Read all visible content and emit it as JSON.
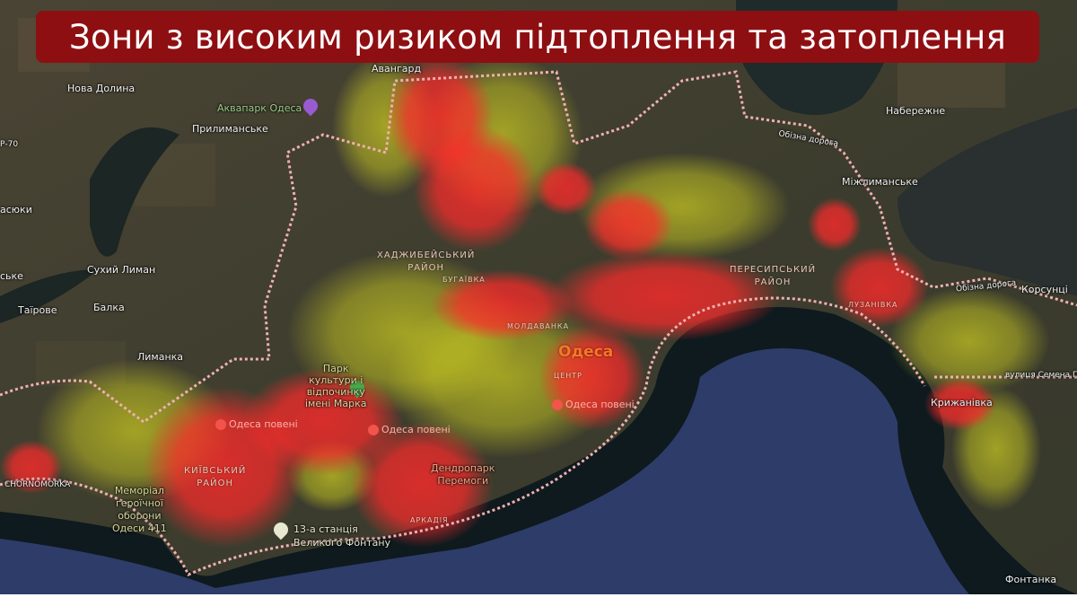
{
  "title": "Зони з високим ризиком підтоплення та затоплення",
  "colors": {
    "banner": "#8e0f12",
    "high_risk": "#ff2a2a",
    "medium_risk": "#d8d820",
    "boundary": "#f0b0b0",
    "sea": "#27365e"
  },
  "places": {
    "avanhard": "Авангард",
    "nova_dolyna": "Нова Долина",
    "aquapark": "Аквапарк Одеса",
    "prylymanske": "Прилиманське",
    "r70": "Р-70",
    "vasiuky": "асюки",
    "ske": "ське",
    "sukhyi_lyman": "Сухий Лиман",
    "tairove": "Таїрове",
    "balka": "Балка",
    "lymanka": "Лиманка",
    "naberezhne": "Набережне",
    "obizna1": "Обізна дорога",
    "obizna2": "Обізна дорога",
    "mizhlymanske": "Міжлиманське",
    "korsuntsi": "Корсунці",
    "semena_paliia": "вулиця Семена Палія",
    "kryzhanivka": "Крижанівка",
    "fontanka": "Фонтанка",
    "chornomorka": "CHORNOMORKA",
    "odesa": "Одеса",
    "tsentr": "ЦЕНТР",
    "moldavanka": "МОЛДАВАНКА",
    "buhaivka": "БУГАЇВКА",
    "luzanivka": "ЛУЗАНІВКА",
    "arkadiia": "АРКАДІЯ"
  },
  "districts": {
    "khadzhybeiskyi": [
      "ХАДЖИБЕЙСЬКИЙ",
      "РАЙОН"
    ],
    "peresypskyi": [
      "ПЕРЕСИПСЬКИЙ",
      "РАЙОН"
    ],
    "kyivskyi": [
      "КИЇВСЬКИЙ",
      "РАЙОН"
    ]
  },
  "pois": {
    "flood1": "Одеса повені",
    "flood2": "Одеса повені",
    "flood3": "Одеса повені",
    "park": [
      "Парк",
      "культури і",
      "відпочинку",
      "імені Марка"
    ],
    "memorial": [
      "Меморіал",
      "героїчної",
      "оборони",
      "Одеси 411"
    ],
    "station": [
      "13-а станція",
      "Великого Фонтану"
    ],
    "dendropark": [
      "Дендропарк",
      "Перемоги"
    ]
  }
}
